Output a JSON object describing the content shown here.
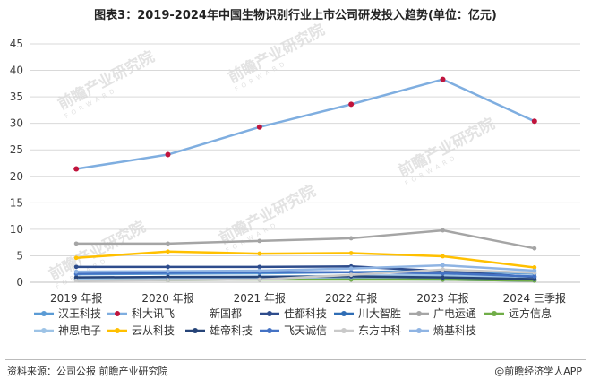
{
  "title": "图表3：2019-2024年中国生物识别行业上市公司研发投入趋势(单位：亿元)",
  "source": "资料来源：公司公报 前瞻产业研究院",
  "brand": "@前瞻经济学人APP",
  "watermark": {
    "main": "前瞻产业研究院",
    "sub": "F O R W A R D"
  },
  "colors": {
    "grid": "#d9d9d9",
    "axis": "#bfbfbf"
  },
  "chart_data": {
    "type": "line",
    "categories": [
      "2019 年报",
      "2020 年报",
      "2021 年报",
      "2022 年报",
      "2023 年报",
      "2024 三季报"
    ],
    "ylim": [
      0,
      45
    ],
    "yticks": [
      0,
      5,
      10,
      15,
      20,
      25,
      30,
      35,
      40,
      45
    ],
    "grid": true,
    "legend_position": "bottom",
    "series": [
      {
        "name": "汉王科技",
        "color": "#5b9bd5",
        "marker": "circle",
        "values": [
          1.5,
          1.6,
          1.7,
          1.9,
          2.2,
          1.6
        ]
      },
      {
        "name": "科大讯飞",
        "color": "#7faee0",
        "marker": "circle",
        "marker_color": "#c0143c",
        "values": [
          21.4,
          24.1,
          29.3,
          33.6,
          38.3,
          30.4
        ]
      },
      {
        "name": "新国都",
        "color": "#9dc3e6",
        "marker": "none",
        "values": [
          0.9,
          1.0,
          1.1,
          1.2,
          1.4,
          1.0
        ]
      },
      {
        "name": "佳都科技",
        "color": "#2e4c8c",
        "marker": "circle",
        "values": [
          2.9,
          2.9,
          2.9,
          3.0,
          2.1,
          1.0
        ]
      },
      {
        "name": "川大智胜",
        "color": "#2f6db5",
        "marker": "circle",
        "values": [
          0.5,
          0.6,
          0.6,
          0.6,
          0.5,
          0.3
        ]
      },
      {
        "name": "广电运通",
        "color": "#a5a5a5",
        "marker": "circle",
        "values": [
          7.3,
          7.3,
          7.8,
          8.3,
          9.8,
          6.4
        ]
      },
      {
        "name": "远方信息",
        "color": "#70ad47",
        "marker": "circle",
        "values": [
          0.4,
          0.4,
          0.5,
          0.5,
          0.5,
          0.3
        ]
      },
      {
        "name": "神思电子",
        "color": "#9dc3e6",
        "marker": "circle",
        "values": [
          0.7,
          0.8,
          0.8,
          1.0,
          1.1,
          0.6
        ]
      },
      {
        "name": "云从科技",
        "color": "#ffc000",
        "marker": "circle",
        "values": [
          4.6,
          5.8,
          5.4,
          5.5,
          4.9,
          2.8
        ]
      },
      {
        "name": "雄帝科技",
        "color": "#264478",
        "marker": "circle",
        "values": [
          0.9,
          1.0,
          1.0,
          1.1,
          0.9,
          0.6
        ]
      },
      {
        "name": "飞天诚信",
        "color": "#4472c4",
        "marker": "circle",
        "values": [
          1.6,
          1.8,
          1.9,
          1.9,
          1.7,
          1.1
        ]
      },
      {
        "name": "东方中科",
        "color": "#c9c9c9",
        "marker": "circle",
        "values": [
          0.3,
          0.4,
          0.5,
          1.4,
          2.4,
          1.8
        ]
      },
      {
        "name": "熵基科技",
        "color": "#8fb4e3",
        "marker": "circle",
        "values": [
          2.0,
          2.1,
          2.2,
          2.6,
          3.2,
          2.2
        ]
      }
    ]
  }
}
